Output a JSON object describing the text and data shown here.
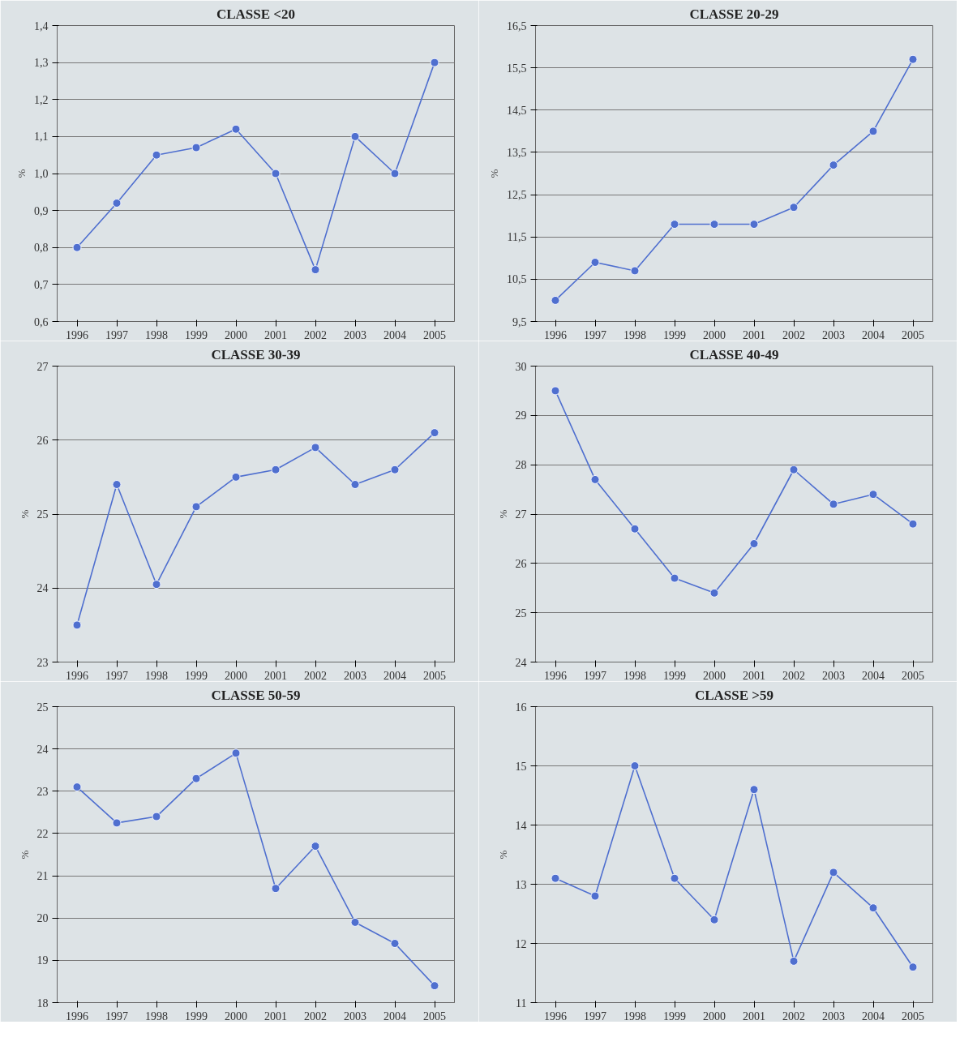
{
  "chart_data": [
    {
      "type": "line",
      "title": "CLASSE <20",
      "ylabel": "%",
      "categories": [
        "1996",
        "1997",
        "1998",
        "1999",
        "2000",
        "2001",
        "2002",
        "2003",
        "2004",
        "2005"
      ],
      "series": [
        {
          "color": "#4f6fcf",
          "values": [
            0.8,
            0.92,
            1.05,
            1.07,
            1.12,
            1.0,
            0.74,
            1.1,
            1.0,
            1.3
          ]
        }
      ],
      "ylim": [
        0.6,
        1.4
      ],
      "yticks": [
        {
          "value": 0.6,
          "label": "0,6"
        },
        {
          "value": 0.7,
          "label": "0,7"
        },
        {
          "value": 0.8,
          "label": "0,8"
        },
        {
          "value": 0.9,
          "label": "0,9"
        },
        {
          "value": 1.0,
          "label": "1,0"
        },
        {
          "value": 1.1,
          "label": "1,1"
        },
        {
          "value": 1.2,
          "label": "1,2"
        },
        {
          "value": 1.3,
          "label": "1,3"
        },
        {
          "value": 1.4,
          "label": "1,4"
        }
      ],
      "grid": "y",
      "marker": "circle",
      "line_style": "solid"
    },
    {
      "type": "line",
      "title": "CLASSE 20-29",
      "ylabel": "%",
      "categories": [
        "1996",
        "1997",
        "1998",
        "1999",
        "2000",
        "2001",
        "2002",
        "2003",
        "2004",
        "2005"
      ],
      "series": [
        {
          "color": "#4f6fcf",
          "values": [
            10.0,
            10.9,
            10.7,
            11.8,
            11.8,
            11.8,
            12.2,
            13.2,
            14.0,
            15.7
          ]
        }
      ],
      "ylim": [
        9.5,
        16.5
      ],
      "yticks": [
        {
          "value": 9.5,
          "label": "9,5"
        },
        {
          "value": 10.5,
          "label": "10,5"
        },
        {
          "value": 11.5,
          "label": "11,5"
        },
        {
          "value": 12.5,
          "label": "12,5"
        },
        {
          "value": 13.5,
          "label": "13,5"
        },
        {
          "value": 14.5,
          "label": "14,5"
        },
        {
          "value": 15.5,
          "label": "15,5"
        },
        {
          "value": 16.5,
          "label": "16,5"
        }
      ],
      "grid": "y",
      "marker": "circle",
      "line_style": "solid"
    },
    {
      "type": "line",
      "title": "CLASSE 30-39",
      "ylabel": "%",
      "categories": [
        "1996",
        "1997",
        "1998",
        "1999",
        "2000",
        "2001",
        "2002",
        "2003",
        "2004",
        "2005"
      ],
      "series": [
        {
          "color": "#4f6fcf",
          "values": [
            23.5,
            25.4,
            24.05,
            25.1,
            25.5,
            25.6,
            25.9,
            25.4,
            25.6,
            26.1
          ]
        }
      ],
      "ylim": [
        23,
        27
      ],
      "yticks": [
        23,
        24,
        25,
        26,
        27
      ],
      "grid": "y",
      "marker": "circle",
      "line_style": "solid"
    },
    {
      "type": "line",
      "title": "CLASSE 40-49",
      "ylabel": "%",
      "categories": [
        "1996",
        "1997",
        "1998",
        "1999",
        "2000",
        "2001",
        "2002",
        "2003",
        "2004",
        "2005"
      ],
      "series": [
        {
          "color": "#4f6fcf",
          "values": [
            29.5,
            27.7,
            26.7,
            25.7,
            25.4,
            26.4,
            27.9,
            27.2,
            27.4,
            26.8
          ]
        }
      ],
      "ylim": [
        24,
        30
      ],
      "yticks": [
        24,
        25,
        26,
        27,
        28,
        29,
        30
      ],
      "grid": "y",
      "marker": "circle",
      "line_style": "solid"
    },
    {
      "type": "line",
      "title": "CLASSE 50-59",
      "ylabel": "%",
      "categories": [
        "1996",
        "1997",
        "1998",
        "1999",
        "2000",
        "2001",
        "2002",
        "2003",
        "2004",
        "2005"
      ],
      "series": [
        {
          "color": "#4f6fcf",
          "values": [
            23.1,
            22.25,
            22.4,
            23.3,
            23.9,
            20.7,
            21.7,
            19.9,
            19.4,
            18.4
          ]
        }
      ],
      "ylim": [
        18,
        25
      ],
      "yticks": [
        18,
        19,
        20,
        21,
        22,
        23,
        24,
        25
      ],
      "grid": "y",
      "marker": "circle",
      "line_style": "solid"
    },
    {
      "type": "line",
      "title": "CLASSE >59",
      "ylabel": "%",
      "categories": [
        "1996",
        "1997",
        "1998",
        "1999",
        "2000",
        "2001",
        "2002",
        "2003",
        "2004",
        "2005"
      ],
      "series": [
        {
          "color": "#4f6fcf",
          "values": [
            13.1,
            12.8,
            15.0,
            13.1,
            12.4,
            14.6,
            11.7,
            13.2,
            12.6,
            11.6
          ]
        }
      ],
      "ylim": [
        11,
        16
      ],
      "yticks": [
        11,
        12,
        13,
        14,
        15,
        16
      ],
      "grid": "y",
      "marker": "circle",
      "line_style": "solid"
    }
  ]
}
